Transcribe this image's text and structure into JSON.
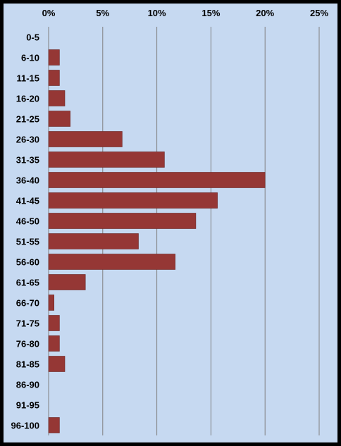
{
  "colors": {
    "background": "#C6D9F1",
    "bar": "#953735",
    "frame": "#000000",
    "gridline": "#808080"
  },
  "chart_data": {
    "type": "bar",
    "orientation": "horizontal",
    "categories": [
      "0-5",
      "6-10",
      "11-15",
      "16-20",
      "21-25",
      "26-30",
      "31-35",
      "36-40",
      "41-45",
      "46-50",
      "51-55",
      "56-60",
      "61-65",
      "66-70",
      "71-75",
      "76-80",
      "81-85",
      "86-90",
      "91-95",
      "96-100"
    ],
    "values": [
      0,
      1.0,
      1.0,
      1.5,
      2.0,
      6.8,
      10.7,
      20.0,
      15.6,
      13.6,
      8.3,
      11.7,
      3.4,
      0.5,
      1.0,
      1.0,
      1.5,
      0,
      0,
      1.0
    ],
    "x_ticks": [
      "0%",
      "5%",
      "10%",
      "15%",
      "20%",
      "25%"
    ],
    "xlim": [
      0,
      25
    ],
    "x_axis_position": "top",
    "grid": true,
    "title": "",
    "xlabel": "",
    "ylabel": ""
  }
}
